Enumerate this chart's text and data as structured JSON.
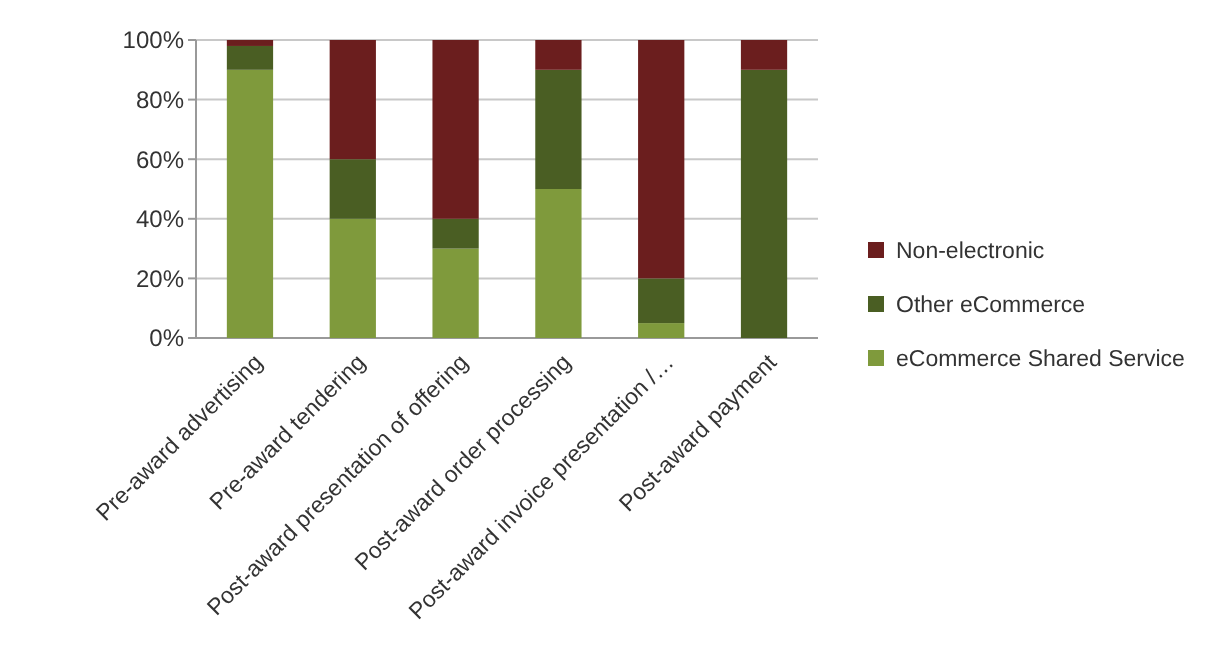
{
  "chart_data": {
    "type": "bar",
    "stacked": true,
    "categories": [
      "Pre-award advertising",
      "Pre-award tendering",
      "Post-award presentation of offering",
      "Post-award order processing",
      "Post-award invoice presentation /…",
      "Post-award payment"
    ],
    "series": [
      {
        "name": "eCommerce Shared Service",
        "color": "#7f9a3c",
        "values": [
          90,
          40,
          30,
          50,
          5,
          0
        ]
      },
      {
        "name": "Other eCommerce",
        "color": "#4a5e23",
        "values": [
          8,
          20,
          10,
          40,
          15,
          90
        ]
      },
      {
        "name": "Non-electronic",
        "color": "#6b1e1e",
        "values": [
          2,
          40,
          60,
          10,
          80,
          10
        ]
      }
    ],
    "ylim": [
      0,
      100
    ],
    "yticks": [
      {
        "value": 0,
        "label": "0%"
      },
      {
        "value": 20,
        "label": "20%"
      },
      {
        "value": 40,
        "label": "40%"
      },
      {
        "value": 60,
        "label": "60%"
      },
      {
        "value": 80,
        "label": "80%"
      },
      {
        "value": 100,
        "label": "100%"
      }
    ],
    "grid": "y",
    "legend": "right"
  }
}
